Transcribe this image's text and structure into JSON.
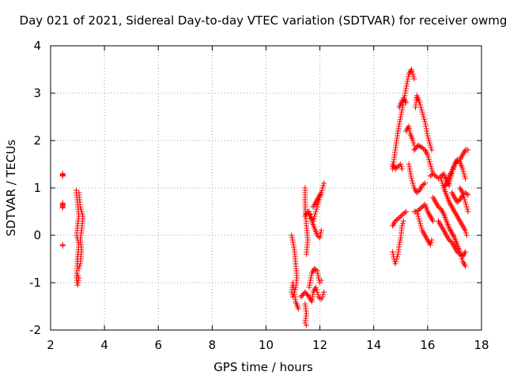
{
  "chart_data": {
    "type": "scatter",
    "title": "Day 021 of 2021, Sidereal Day-to-day VTEC variation (SDTVAR) for receiver owmg",
    "xlabel": "GPS time / hours",
    "ylabel": "SDTVAR / TECUs",
    "xlim": [
      2,
      18
    ],
    "ylim": [
      -2,
      4
    ],
    "xticks": [
      2,
      4,
      6,
      8,
      10,
      12,
      14,
      16,
      18
    ],
    "yticks": [
      -2,
      -1,
      0,
      1,
      2,
      3,
      4
    ],
    "grid": true,
    "marker": "+",
    "series_color": "#ff0000",
    "segments": [
      {
        "name": "cluster-3h-a",
        "x": [
          2.45,
          2.45
        ],
        "y": [
          1.3,
          1.25
        ],
        "step": 0.02
      },
      {
        "name": "cluster-3h-b",
        "x": [
          2.45,
          2.45
        ],
        "y": [
          0.68,
          0.58
        ],
        "step": 0.02
      },
      {
        "name": "cluster-3h-c",
        "x": [
          2.45,
          2.45
        ],
        "y": [
          -0.2,
          -0.22
        ],
        "step": 0.02
      },
      {
        "name": "cluster-3h-d",
        "x": [
          2.95,
          3.0,
          3.05,
          3.0,
          2.97,
          3.05,
          3.0,
          2.98,
          3.05,
          3.02,
          3.0,
          2.96,
          3.0,
          3.02
        ],
        "y": [
          0.95,
          0.7,
          0.4,
          0.2,
          0.0,
          -0.2,
          -0.5,
          -0.8,
          -0.9,
          -1.0,
          -1.05,
          -0.9,
          -0.6,
          -0.4
        ],
        "step": 0.05
      },
      {
        "name": "cluster-3h-e",
        "x": [
          3.05,
          3.1,
          3.15,
          3.2,
          3.15,
          3.1,
          3.15,
          3.1,
          3.05
        ],
        "y": [
          0.9,
          0.6,
          0.5,
          0.4,
          0.1,
          -0.1,
          -0.3,
          -0.6,
          -0.7
        ],
        "step": 0.05
      },
      {
        "name": "cluster-11h-a",
        "x": [
          10.95,
          11.05,
          11.1,
          11.15,
          11.1,
          11.05,
          11.0,
          10.95,
          11.0,
          11.1,
          11.2
        ],
        "y": [
          0.0,
          -0.3,
          -0.6,
          -0.9,
          -1.1,
          -1.2,
          -1.3,
          -1.2,
          -1.0,
          -1.4,
          -1.55
        ],
        "step": 0.05
      },
      {
        "name": "cluster-11h-b",
        "x": [
          11.45,
          11.45,
          11.5,
          11.55,
          11.5
        ],
        "y": [
          1.0,
          0.6,
          0.2,
          -0.1,
          -0.4
        ],
        "step": 0.05
      },
      {
        "name": "cluster-11h-c",
        "x": [
          11.45,
          11.5,
          11.45,
          11.5
        ],
        "y": [
          -1.45,
          -1.65,
          -1.85,
          -1.9
        ],
        "step": 0.05
      },
      {
        "name": "cluster-11h-d",
        "x": [
          11.3,
          11.45,
          11.6,
          11.7,
          11.75,
          11.85,
          11.95,
          12.05,
          12.1,
          12.15
        ],
        "y": [
          -1.3,
          -1.2,
          -1.3,
          -1.4,
          -1.2,
          -1.1,
          -1.3,
          -1.35,
          -1.3,
          -1.2
        ],
        "step": 0.05
      },
      {
        "name": "cluster-11h-e",
        "x": [
          11.6,
          11.7,
          11.8,
          11.9,
          11.95,
          12.0,
          12.05
        ],
        "y": [
          -1.1,
          -0.8,
          -0.7,
          -0.75,
          -0.9,
          -1.0,
          -0.95
        ],
        "step": 0.05
      },
      {
        "name": "cluster-11h-f",
        "x": [
          11.45,
          11.55,
          11.65,
          11.75,
          11.85,
          11.95,
          12.05,
          12.15
        ],
        "y": [
          0.4,
          0.5,
          0.4,
          0.3,
          0.5,
          0.7,
          0.9,
          1.1
        ],
        "step": 0.05
      },
      {
        "name": "cluster-11h-g",
        "x": [
          11.6,
          11.7,
          11.8,
          11.9,
          12.0,
          12.05
        ],
        "y": [
          0.5,
          0.3,
          0.15,
          0.0,
          -0.05,
          0.1
        ],
        "step": 0.05
      },
      {
        "name": "cluster-11h-h",
        "x": [
          11.75,
          11.85,
          11.95,
          12.05
        ],
        "y": [
          0.6,
          0.7,
          0.8,
          0.9
        ],
        "step": 0.05
      },
      {
        "name": "cluster-15h-a",
        "x": [
          14.7,
          14.8,
          14.9,
          15.0,
          15.1,
          15.2,
          15.3,
          15.4,
          15.5
        ],
        "y": [
          1.4,
          1.8,
          2.2,
          2.5,
          2.8,
          3.1,
          3.4,
          3.5,
          3.3
        ],
        "step": 0.05
      },
      {
        "name": "cluster-15h-b",
        "x": [
          14.7,
          14.8,
          14.9,
          15.0,
          15.05
        ],
        "y": [
          1.5,
          1.4,
          1.45,
          1.5,
          1.4
        ],
        "step": 0.05
      },
      {
        "name": "cluster-15h-c",
        "x": [
          14.95,
          15.05,
          15.1,
          15.2
        ],
        "y": [
          2.7,
          2.85,
          2.9,
          2.8
        ],
        "step": 0.05
      },
      {
        "name": "cluster-15h-d",
        "x": [
          15.2,
          15.3,
          15.35,
          15.45,
          15.5
        ],
        "y": [
          2.2,
          2.3,
          2.15,
          2.0,
          1.9
        ],
        "step": 0.05
      },
      {
        "name": "cluster-15h-e",
        "x": [
          15.55,
          15.6,
          15.7,
          15.8,
          15.9,
          16.0,
          16.1,
          16.15
        ],
        "y": [
          2.7,
          2.95,
          2.8,
          2.6,
          2.4,
          2.1,
          1.9,
          1.8
        ],
        "step": 0.05
      },
      {
        "name": "cluster-15h-f",
        "x": [
          15.5,
          15.65,
          15.8,
          15.9,
          16.0,
          16.1,
          16.2
        ],
        "y": [
          1.8,
          1.9,
          1.85,
          1.8,
          1.7,
          1.5,
          1.3
        ],
        "step": 0.05
      },
      {
        "name": "cluster-15h-g",
        "x": [
          14.7,
          14.8,
          14.9,
          15.0,
          15.1,
          15.2
        ],
        "y": [
          0.2,
          0.3,
          0.35,
          0.4,
          0.45,
          0.5
        ],
        "step": 0.05
      },
      {
        "name": "cluster-15h-h",
        "x": [
          14.7,
          14.75,
          14.8,
          14.9,
          14.95,
          15.0,
          15.05,
          15.1
        ],
        "y": [
          -0.35,
          -0.5,
          -0.6,
          -0.4,
          -0.2,
          -0.05,
          0.2,
          0.3
        ],
        "step": 0.05
      },
      {
        "name": "cluster-15h-i",
        "x": [
          15.3,
          15.4,
          15.5,
          15.6,
          15.7,
          15.8,
          15.9
        ],
        "y": [
          1.5,
          1.2,
          1.0,
          0.9,
          0.95,
          1.05,
          1.1
        ],
        "step": 0.05
      },
      {
        "name": "cluster-16h-a",
        "x": [
          15.5,
          15.6,
          15.7,
          15.8,
          15.9,
          16.0,
          16.1,
          16.2
        ],
        "y": [
          0.5,
          0.5,
          0.55,
          0.6,
          0.65,
          0.5,
          0.4,
          0.3
        ],
        "step": 0.05
      },
      {
        "name": "cluster-16h-b",
        "x": [
          15.6,
          15.7,
          15.8,
          15.9,
          16.0,
          16.1,
          16.15
        ],
        "y": [
          0.5,
          0.3,
          0.1,
          0.0,
          -0.1,
          -0.2,
          -0.1
        ],
        "step": 0.05
      },
      {
        "name": "cluster-16h-c",
        "x": [
          16.1,
          16.2,
          16.3,
          16.4,
          16.5,
          16.6,
          16.7,
          16.8
        ],
        "y": [
          1.25,
          1.3,
          1.25,
          1.2,
          1.25,
          1.3,
          1.15,
          1.05
        ],
        "step": 0.05
      },
      {
        "name": "cluster-16h-d",
        "x": [
          16.2,
          16.3,
          16.4,
          16.5,
          16.6,
          16.7,
          16.8,
          16.9,
          17.0,
          17.1,
          17.2,
          17.3,
          17.4
        ],
        "y": [
          0.8,
          0.7,
          0.6,
          0.55,
          0.45,
          0.3,
          0.15,
          0.05,
          -0.05,
          -0.2,
          -0.35,
          -0.55,
          -0.65
        ],
        "step": 0.05
      },
      {
        "name": "cluster-16h-e",
        "x": [
          16.4,
          16.5,
          16.6,
          16.7,
          16.8,
          16.9,
          17.0,
          17.1,
          17.2,
          17.3,
          17.4
        ],
        "y": [
          0.3,
          0.2,
          0.1,
          0.0,
          -0.1,
          -0.15,
          -0.25,
          -0.35,
          -0.4,
          -0.45,
          -0.35
        ],
        "step": 0.05
      },
      {
        "name": "cluster-16h-f",
        "x": [
          16.5,
          16.6,
          16.7,
          16.8,
          16.9,
          17.0,
          17.1,
          17.2,
          17.3,
          17.4,
          17.45
        ],
        "y": [
          1.2,
          1.0,
          0.85,
          0.7,
          0.6,
          0.5,
          0.4,
          0.3,
          0.2,
          0.1,
          0.0
        ],
        "step": 0.05
      },
      {
        "name": "cluster-16h-g",
        "x": [
          16.6,
          16.7,
          16.8,
          16.9,
          17.0,
          17.1,
          17.2,
          17.3,
          17.4,
          17.5
        ],
        "y": [
          1.0,
          1.1,
          1.25,
          1.35,
          1.5,
          1.55,
          1.6,
          1.7,
          1.8,
          1.8
        ],
        "step": 0.05
      },
      {
        "name": "cluster-16h-h",
        "x": [
          16.8,
          16.9,
          17.0,
          17.1,
          17.2,
          17.3,
          17.4
        ],
        "y": [
          1.1,
          1.3,
          1.5,
          1.6,
          1.55,
          1.4,
          1.2
        ],
        "step": 0.05
      },
      {
        "name": "cluster-16h-i",
        "x": [
          16.9,
          17.0,
          17.1,
          17.2,
          17.3,
          17.4,
          17.5
        ],
        "y": [
          0.9,
          0.8,
          0.7,
          0.75,
          0.85,
          0.9,
          0.85
        ],
        "step": 0.05
      },
      {
        "name": "cluster-16h-j",
        "x": [
          17.2,
          17.3,
          17.4,
          17.5
        ],
        "y": [
          1.0,
          0.9,
          0.7,
          0.5
        ],
        "step": 0.05
      }
    ]
  }
}
